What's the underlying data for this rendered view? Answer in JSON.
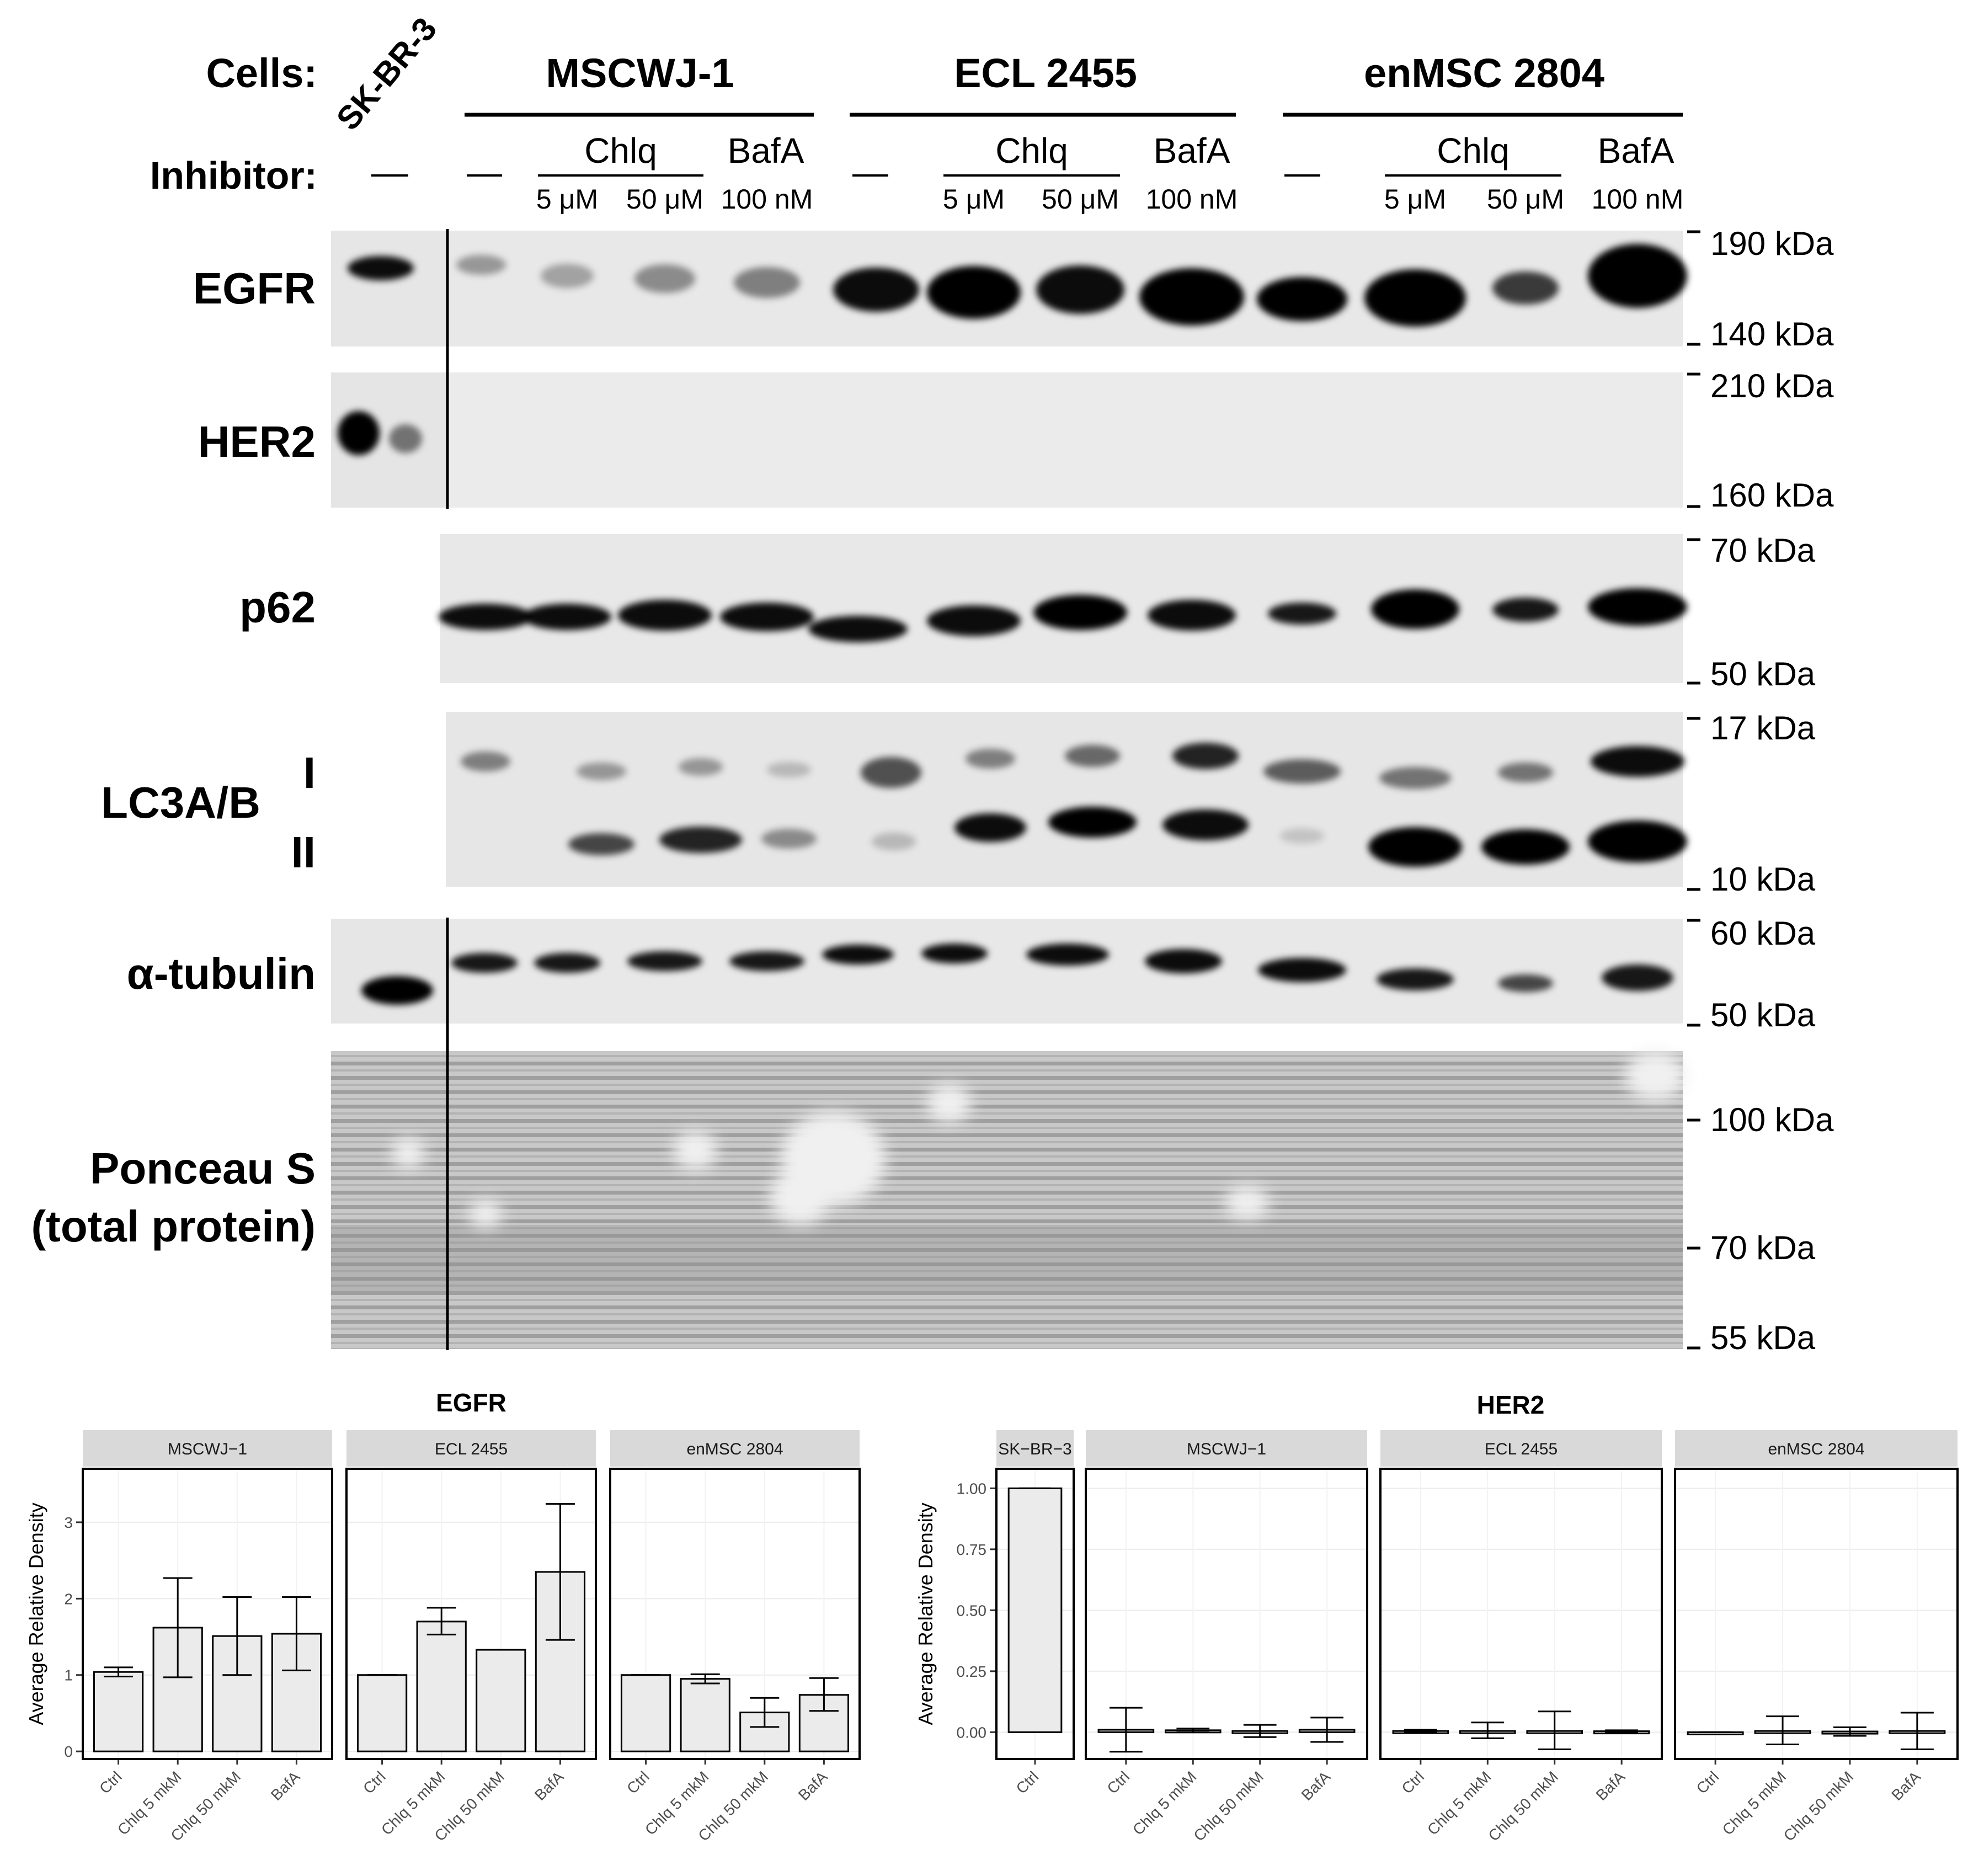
{
  "blot": {
    "cells_label": "Cells:",
    "inhibitor_label": "Inhibitor:",
    "sk_label": "SK-BR-3",
    "dash": "—",
    "groups": [
      "MSCWJ-1",
      "ECL 2455",
      "enMSC 2804"
    ],
    "chlq_label": "Chlq",
    "bafa_label": "BafA",
    "conc": [
      "5 μM",
      "50 μM",
      "100 nM"
    ],
    "rows": [
      "EGFR",
      "HER2",
      "p62",
      "LC3A/B",
      "α-tubulin",
      "Ponceau S",
      "(total protein)"
    ],
    "lc3_bands": [
      "I",
      "II"
    ],
    "markers": [
      "190 kDa",
      "140 kDa",
      "210 kDa",
      "160 kDa",
      "70 kDa",
      "50 kDa",
      "17 kDa",
      "10 kDa",
      "60 kDa",
      "50 kDa",
      "100 kDa",
      "70 kDa",
      "55 kDa"
    ]
  },
  "chart_data": [
    {
      "type": "bar",
      "title": "EGFR",
      "ylabel": "Average Relative Density",
      "ylim": [
        -0.1,
        3.7
      ],
      "yticks": [
        "0",
        "1",
        "2",
        "3"
      ],
      "categories": [
        "Ctrl",
        "Chlq 5 mkM",
        "Chlq 50 mkM",
        "BafA"
      ],
      "facets": [
        {
          "name": "MSCWJ−1",
          "values": [
            1.04,
            1.62,
            1.51,
            1.54
          ],
          "err_low": [
            0.98,
            0.97,
            1.0,
            1.06
          ],
          "err_high": [
            1.1,
            2.27,
            2.02,
            2.02
          ]
        },
        {
          "name": "ECL 2455",
          "values": [
            1.0,
            1.7,
            1.33,
            2.35
          ],
          "err_low": [
            1.0,
            1.53,
            1.33,
            1.46
          ],
          "err_high": [
            1.0,
            1.88,
            1.33,
            3.24
          ]
        },
        {
          "name": "enMSC 2804",
          "values": [
            1.0,
            0.95,
            0.51,
            0.74
          ],
          "err_low": [
            1.0,
            0.89,
            0.32,
            0.53
          ],
          "err_high": [
            1.0,
            1.01,
            0.7,
            0.96
          ]
        }
      ]
    },
    {
      "type": "bar",
      "title": "HER2",
      "ylabel": "Average Relative Density",
      "ylim": [
        -0.11,
        1.08
      ],
      "yticks": [
        "0.00",
        "0.25",
        "0.50",
        "0.75",
        "1.00"
      ],
      "facets": [
        {
          "name": "SK−BR−3",
          "categories": [
            "Ctrl"
          ],
          "values": [
            1.0
          ],
          "err_low": [
            1.0
          ],
          "err_high": [
            1.0
          ]
        },
        {
          "name": "MSCWJ−1",
          "categories": [
            "Ctrl",
            "Chlq 5 mkM",
            "Chlq 50 mkM",
            "BafA"
          ],
          "values": [
            0.01,
            0.008,
            0.005,
            0.01
          ],
          "err_low": [
            -0.08,
            0.0,
            -0.02,
            -0.04
          ],
          "err_high": [
            0.1,
            0.015,
            0.03,
            0.06
          ]
        },
        {
          "name": "ECL 2455",
          "categories": [
            "Ctrl",
            "Chlq 5 mkM",
            "Chlq 50 mkM",
            "BafA"
          ],
          "values": [
            0.005,
            0.005,
            0.005,
            0.004
          ],
          "err_low": [
            0.0,
            -0.025,
            -0.07,
            0.0
          ],
          "err_high": [
            0.01,
            0.04,
            0.085,
            0.008
          ]
        },
        {
          "name": "enMSC 2804",
          "categories": [
            "Ctrl",
            "Chlq 5 mkM",
            "Chlq 50 mkM",
            "BafA"
          ],
          "values": [
            0.0,
            0.005,
            0.003,
            0.005
          ],
          "err_low": [
            0.0,
            -0.05,
            -0.015,
            -0.07
          ],
          "err_high": [
            0.0,
            0.065,
            0.02,
            0.08
          ]
        }
      ]
    }
  ]
}
